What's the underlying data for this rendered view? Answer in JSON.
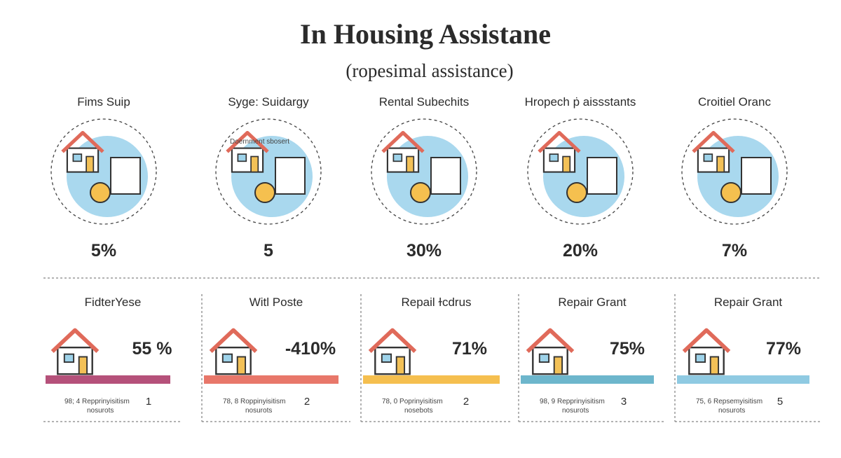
{
  "header": {
    "title": "In Housing Assistane",
    "subtitle": "(ropesimal assistance)"
  },
  "top_items": [
    {
      "label": "Fims Suip",
      "value": "5%"
    },
    {
      "label": "Syge: Suidargy",
      "value": "5",
      "icon_text": "Doernment sbosert"
    },
    {
      "label": "Rental Subechits",
      "value": "30%"
    },
    {
      "label": "Hropech ṗ aissstants",
      "value": "20%"
    },
    {
      "label": "Croitiel Oranc",
      "value": "7%"
    }
  ],
  "bottom_items": [
    {
      "label": "FidterYese",
      "value": "55 %",
      "note_line1": "98; 4 Repprinyisitism",
      "note_line2": "nosurots",
      "number": "1",
      "color": "#b5517a"
    },
    {
      "label": "Witl Poste",
      "value": "-410%",
      "note_line1": "78, 8 Roppinyisitism",
      "note_line2": "nosurots",
      "number": "2",
      "color": "#e8776a"
    },
    {
      "label": "Repail ɫcdrus",
      "value": "71%",
      "note_line1": "78, 0 Poprinyisitism",
      "note_line2": "nosebots",
      "number": "2",
      "color": "#f5bf4f"
    },
    {
      "label": "Repair Grant",
      "value": "75%",
      "note_line1": "98, 9 Repprinyisitism",
      "note_line2": "nosurots",
      "number": "3",
      "color": "#6db6cc"
    },
    {
      "label": "Repair Grant",
      "value": "77%",
      "note_line1": "75, 6 Repsemyisitism",
      "note_line2": "nosurots",
      "number": "5",
      "color": "#8fcae2"
    }
  ]
}
